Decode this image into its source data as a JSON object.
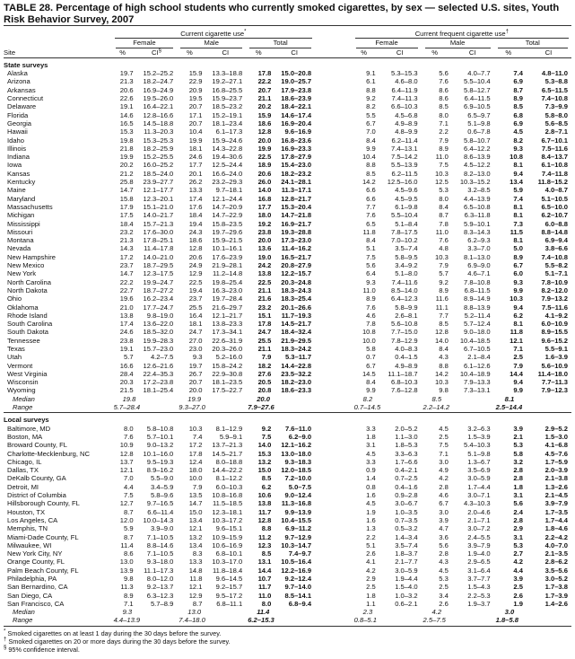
{
  "title": "TABLE 28. Percentage of high school students who currently smoked cigarettes, by sex — selected U.S. sites, Youth Risk Behavior Survey, 2007",
  "groups": {
    "current": "Current cigarette use",
    "current_mark": "*",
    "frequent": "Current frequent cigarette use",
    "frequent_mark": "†"
  },
  "sexes": [
    "Female",
    "Male",
    "Total"
  ],
  "columns": {
    "site": "Site",
    "pct": "%",
    "ci": "CI",
    "ci_mark": "§"
  },
  "state_label": "State surveys",
  "local_label": "Local surveys",
  "state_rows": [
    [
      "Alaska",
      "19.7",
      "15.2–25.2",
      "15.9",
      "13.3–18.8",
      "17.8",
      "15.0–20.8",
      "9.1",
      "5.3–15.3",
      "5.6",
      "4.0–7.7",
      "7.4",
      "4.8–11.0"
    ],
    [
      "Arizona",
      "21.3",
      "18.2–24.7",
      "22.9",
      "19.2–27.1",
      "22.2",
      "19.0–25.7",
      "6.1",
      "4.6–8.0",
      "7.6",
      "5.5–10.4",
      "6.9",
      "5.3–8.8"
    ],
    [
      "Arkansas",
      "20.6",
      "16.9–24.9",
      "20.9",
      "16.8–25.5",
      "20.7",
      "17.9–23.8",
      "8.8",
      "6.4–11.9",
      "8.6",
      "5.8–12.7",
      "8.7",
      "6.5–11.5"
    ],
    [
      "Connecticut",
      "22.6",
      "19.5–26.0",
      "19.5",
      "15.9–23.7",
      "21.1",
      "18.6–23.9",
      "9.2",
      "7.4–11.3",
      "8.6",
      "6.4–11.5",
      "8.9",
      "7.4–10.8"
    ],
    [
      "Delaware",
      "19.1",
      "16.4–22.1",
      "20.7",
      "18.5–23.2",
      "20.2",
      "18.4–22.1",
      "8.2",
      "6.6–10.3",
      "8.5",
      "6.9–10.5",
      "8.5",
      "7.3–9.9"
    ],
    [
      "Florida",
      "14.6",
      "12.8–16.6",
      "17.1",
      "15.2–19.1",
      "15.9",
      "14.6–17.4",
      "5.5",
      "4.5–6.8",
      "8.0",
      "6.5–9.7",
      "6.8",
      "5.8–8.0"
    ],
    [
      "Georgia",
      "16.5",
      "14.5–18.8",
      "20.7",
      "18.1–23.4",
      "18.6",
      "16.9–20.4",
      "6.7",
      "4.9–8.9",
      "7.1",
      "5.1–9.8",
      "6.9",
      "5.6–8.5"
    ],
    [
      "Hawaii",
      "15.3",
      "11.3–20.3",
      "10.4",
      "6.1–17.3",
      "12.8",
      "9.6–16.9",
      "7.0",
      "4.8–9.9",
      "2.2",
      "0.6–7.8",
      "4.5",
      "2.8–7.1"
    ],
    [
      "Idaho",
      "19.8",
      "15.3–25.3",
      "19.9",
      "15.9–24.6",
      "20.0",
      "16.8–23.6",
      "8.4",
      "6.2–11.4",
      "7.9",
      "5.8–10.7",
      "8.2",
      "6.7–10.1"
    ],
    [
      "Illinois",
      "21.8",
      "18.2–25.9",
      "18.1",
      "14.3–22.8",
      "19.9",
      "16.9–23.3",
      "9.9",
      "7.4–13.1",
      "8.9",
      "6.4–12.2",
      "9.3",
      "7.5–11.6"
    ],
    [
      "Indiana",
      "19.9",
      "15.2–25.5",
      "24.6",
      "19.4–30.6",
      "22.5",
      "17.8–27.9",
      "10.4",
      "7.5–14.2",
      "11.0",
      "8.6–13.9",
      "10.8",
      "8.4–13.7"
    ],
    [
      "Iowa",
      "20.2",
      "16.0–25.2",
      "17.7",
      "12.5–24.4",
      "18.9",
      "15.4–23.0",
      "8.8",
      "5.5–13.9",
      "7.5",
      "4.5–12.2",
      "8.1",
      "6.1–10.8"
    ],
    [
      "Kansas",
      "21.2",
      "18.5–24.0",
      "20.1",
      "16.6–24.0",
      "20.6",
      "18.2–23.2",
      "8.5",
      "6.2–11.5",
      "10.3",
      "8.2–13.0",
      "9.4",
      "7.4–11.8"
    ],
    [
      "Kentucky",
      "25.8",
      "23.9–27.7",
      "26.2",
      "23.2–29.3",
      "26.0",
      "24.1–28.1",
      "14.2",
      "12.5–16.0",
      "12.5",
      "10.3–15.2",
      "13.4",
      "11.8–15.2"
    ],
    [
      "Maine",
      "14.7",
      "12.1–17.7",
      "13.3",
      "9.7–18.1",
      "14.0",
      "11.3–17.1",
      "6.6",
      "4.5–9.6",
      "5.3",
      "3.2–8.5",
      "5.9",
      "4.0–8.7"
    ],
    [
      "Maryland",
      "15.8",
      "12.3–20.1",
      "17.4",
      "12.1–24.4",
      "16.8",
      "12.8–21.7",
      "6.6",
      "4.5–9.5",
      "8.0",
      "4.4–13.9",
      "7.4",
      "5.1–10.5"
    ],
    [
      "Massachusetts",
      "17.9",
      "15.1–21.0",
      "17.6",
      "14.7–20.9",
      "17.7",
      "15.3–20.4",
      "7.7",
      "6.1–9.8",
      "8.4",
      "6.5–10.8",
      "8.1",
      "6.5–10.0"
    ],
    [
      "Michigan",
      "17.5",
      "14.0–21.7",
      "18.4",
      "14.7–22.9",
      "18.0",
      "14.7–21.8",
      "7.6",
      "5.5–10.4",
      "8.7",
      "6.3–11.8",
      "8.1",
      "6.2–10.7"
    ],
    [
      "Mississippi",
      "18.4",
      "15.7–21.3",
      "19.4",
      "15.8–23.5",
      "19.2",
      "16.9–21.7",
      "6.5",
      "5.1–8.4",
      "7.8",
      "5.9–10.1",
      "7.3",
      "6.0–8.8"
    ],
    [
      "Missouri",
      "23.2",
      "17.6–30.0",
      "24.3",
      "19.7–29.6",
      "23.8",
      "19.3–28.8",
      "11.8",
      "7.8–17.5",
      "11.0",
      "8.3–14.3",
      "11.5",
      "8.8–14.8"
    ],
    [
      "Montana",
      "21.3",
      "17.8–25.1",
      "18.6",
      "15.9–21.5",
      "20.0",
      "17.3–23.0",
      "8.4",
      "7.0–10.2",
      "7.6",
      "6.2–9.3",
      "8.1",
      "6.9–9.4"
    ],
    [
      "Nevada",
      "14.3",
      "11.4–17.8",
      "12.8",
      "10.1–16.1",
      "13.6",
      "11.4–16.2",
      "5.1",
      "3.5–7.4",
      "4.8",
      "3.3–7.0",
      "5.0",
      "3.8–6.6"
    ],
    [
      "New Hampshire",
      "17.2",
      "14.0–21.0",
      "20.6",
      "17.6–23.9",
      "19.0",
      "16.5–21.7",
      "7.5",
      "5.8–9.5",
      "10.3",
      "8.1–13.0",
      "8.9",
      "7.4–10.8"
    ],
    [
      "New Mexico",
      "23.7",
      "18.7–29.5",
      "24.9",
      "21.9–28.1",
      "24.2",
      "20.8–27.9",
      "5.6",
      "3.4–9.2",
      "7.9",
      "6.9–9.0",
      "6.7",
      "5.5–8.2"
    ],
    [
      "New York",
      "14.7",
      "12.3–17.5",
      "12.9",
      "11.2–14.8",
      "13.8",
      "12.2–15.7",
      "6.4",
      "5.1–8.0",
      "5.7",
      "4.6–7.1",
      "6.0",
      "5.1–7.1"
    ],
    [
      "North Carolina",
      "22.2",
      "19.9–24.7",
      "22.5",
      "19.8–25.4",
      "22.5",
      "20.3–24.8",
      "9.3",
      "7.4–11.6",
      "9.2",
      "7.8–10.8",
      "9.3",
      "7.8–10.9"
    ],
    [
      "North Dakota",
      "22.7",
      "18.7–27.2",
      "19.4",
      "16.3–23.0",
      "21.1",
      "18.3–24.3",
      "11.0",
      "8.5–14.0",
      "8.9",
      "6.8–11.5",
      "9.9",
      "8.2–12.0"
    ],
    [
      "Ohio",
      "19.6",
      "16.2–23.4",
      "23.7",
      "19.7–28.4",
      "21.6",
      "18.3–25.4",
      "8.9",
      "6.4–12.3",
      "11.6",
      "8.9–14.9",
      "10.3",
      "7.9–13.2"
    ],
    [
      "Oklahoma",
      "21.0",
      "17.7–24.7",
      "25.5",
      "21.6–29.7",
      "23.2",
      "20.1–26.6",
      "7.6",
      "5.8–9.9",
      "11.1",
      "8.8–13.9",
      "9.4",
      "7.5–11.6"
    ],
    [
      "Rhode Island",
      "13.8",
      "9.8–19.0",
      "16.4",
      "12.1–21.7",
      "15.1",
      "11.7–19.3",
      "4.6",
      "2.6–8.1",
      "7.7",
      "5.2–11.4",
      "6.2",
      "4.1–9.2"
    ],
    [
      "South Carolina",
      "17.4",
      "13.6–22.0",
      "18.1",
      "13.8–23.3",
      "17.8",
      "14.5–21.7",
      "7.8",
      "5.6–10.8",
      "8.5",
      "5.7–12.4",
      "8.1",
      "6.0–10.9"
    ],
    [
      "South Dakota",
      "24.6",
      "18.5–32.0",
      "24.7",
      "17.3–34.1",
      "24.7",
      "18.4–32.4",
      "10.8",
      "7.7–15.0",
      "12.8",
      "9.0–18.0",
      "11.8",
      "8.9–15.5"
    ],
    [
      "Tennessee",
      "23.8",
      "19.9–28.3",
      "27.0",
      "22.6–31.9",
      "25.5",
      "21.9–29.5",
      "10.0",
      "7.8–12.9",
      "14.0",
      "10.4–18.5",
      "12.1",
      "9.6–15.2"
    ],
    [
      "Texas",
      "19.1",
      "15.7–23.0",
      "23.0",
      "20.3–26.0",
      "21.1",
      "18.3–24.2",
      "5.8",
      "4.0–8.3",
      "8.4",
      "6.7–10.5",
      "7.1",
      "5.5–9.1"
    ],
    [
      "Utah",
      "5.7",
      "4.2–7.5",
      "9.3",
      "5.2–16.0",
      "7.9",
      "5.3–11.7",
      "0.7",
      "0.4–1.5",
      "4.3",
      "2.1–8.4",
      "2.5",
      "1.6–3.9"
    ],
    [
      "Vermont",
      "16.6",
      "12.6–21.6",
      "19.7",
      "15.8–24.2",
      "18.2",
      "14.4–22.8",
      "6.7",
      "4.9–8.9",
      "8.8",
      "6.1–12.6",
      "7.9",
      "5.6–10.9"
    ],
    [
      "West Virginia",
      "28.4",
      "22.4–35.3",
      "26.7",
      "22.9–30.8",
      "27.6",
      "23.5–32.2",
      "14.5",
      "11.1–18.7",
      "14.2",
      "10.4–18.9",
      "14.4",
      "11.4–18.0"
    ],
    [
      "Wisconsin",
      "20.3",
      "17.2–23.8",
      "20.7",
      "18.1–23.5",
      "20.5",
      "18.2–23.0",
      "8.4",
      "6.8–10.3",
      "10.3",
      "7.9–13.3",
      "9.4",
      "7.7–11.3"
    ],
    [
      "Wyoming",
      "21.5",
      "18.1–25.4",
      "20.0",
      "17.5–22.7",
      "20.8",
      "18.6–23.3",
      "9.9",
      "7.6–12.8",
      "9.8",
      "7.3–13.1",
      "9.9",
      "7.9–12.3"
    ]
  ],
  "state_median": [
    "Median",
    "19.8",
    "19.9",
    "20.0",
    "8.2",
    "8.5",
    "8.1"
  ],
  "state_range": [
    "Range",
    "5.7–28.4",
    "9.3–27.0",
    "7.9–27.6",
    "0.7–14.5",
    "2.2–14.2",
    "2.5–14.4"
  ],
  "local_rows": [
    [
      "Baltimore, MD",
      "8.0",
      "5.8–10.8",
      "10.3",
      "8.1–12.9",
      "9.2",
      "7.6–11.0",
      "3.3",
      "2.0–5.2",
      "4.5",
      "3.2–6.3",
      "3.9",
      "2.9–5.2"
    ],
    [
      "Boston, MA",
      "7.6",
      "5.7–10.1",
      "7.4",
      "5.9–9.1",
      "7.5",
      "6.2–9.0",
      "1.8",
      "1.1–3.0",
      "2.5",
      "1.5–3.9",
      "2.1",
      "1.5–3.0"
    ],
    [
      "Broward County, FL",
      "10.9",
      "9.0–13.2",
      "17.2",
      "13.7–21.3",
      "14.0",
      "12.1–16.2",
      "3.1",
      "1.8–5.3",
      "7.5",
      "5.4–10.3",
      "5.3",
      "4.1–6.8"
    ],
    [
      "Charlotte-Mecklenburg, NC",
      "12.8",
      "10.1–16.0",
      "17.8",
      "14.5–21.7",
      "15.3",
      "13.0–18.0",
      "4.5",
      "3.3–6.3",
      "7.1",
      "5.1–9.8",
      "5.8",
      "4.5–7.6"
    ],
    [
      "Chicago, IL",
      "13.7",
      "9.5–19.3",
      "12.4",
      "8.0–18.8",
      "13.2",
      "9.3–18.3",
      "3.3",
      "1.7–6.6",
      "3.0",
      "1.3–6.7",
      "3.2",
      "1.7–5.9"
    ],
    [
      "Dallas, TX",
      "12.1",
      "8.9–16.2",
      "18.0",
      "14.4–22.2",
      "15.0",
      "12.0–18.5",
      "0.9",
      "0.4–2.1",
      "4.9",
      "3.5–6.9",
      "2.8",
      "2.0–3.9"
    ],
    [
      "DeKalb County, GA",
      "7.0",
      "5.5–9.0",
      "10.0",
      "8.1–12.2",
      "8.5",
      "7.2–10.0",
      "1.4",
      "0.7–2.5",
      "4.2",
      "3.0–5.9",
      "2.8",
      "2.1–3.8"
    ],
    [
      "Detroit, MI",
      "4.4",
      "3.4–5.9",
      "7.9",
      "6.0–10.3",
      "6.2",
      "5.0–7.5",
      "0.8",
      "0.4–1.6",
      "2.8",
      "1.7–4.4",
      "1.8",
      "1.3–2.6"
    ],
    [
      "District of Columbia",
      "7.5",
      "5.8–9.6",
      "13.5",
      "10.8–16.8",
      "10.6",
      "9.0–12.4",
      "1.6",
      "0.9–2.8",
      "4.6",
      "3.0–7.1",
      "3.1",
      "2.1–4.5"
    ],
    [
      "Hillsborough County, FL",
      "12.7",
      "9.7–16.5",
      "14.7",
      "11.5–18.5",
      "13.8",
      "11.3–16.8",
      "4.5",
      "3.0–6.7",
      "6.7",
      "4.3–10.3",
      "5.6",
      "3.9–7.9"
    ],
    [
      "Houston, TX",
      "8.7",
      "6.6–11.4",
      "15.0",
      "12.3–18.1",
      "11.7",
      "9.9–13.9",
      "1.9",
      "1.0–3.5",
      "3.0",
      "2.0–4.6",
      "2.4",
      "1.7–3.5"
    ],
    [
      "Los Angeles, CA",
      "12.0",
      "10.0–14.3",
      "13.4",
      "10.3–17.2",
      "12.8",
      "10.4–15.5",
      "1.6",
      "0.7–3.5",
      "3.9",
      "2.1–7.1",
      "2.8",
      "1.7–4.4"
    ],
    [
      "Memphis, TN",
      "5.9",
      "3.9–9.0",
      "12.1",
      "9.6–15.1",
      "8.8",
      "6.9–11.2",
      "1.3",
      "0.5–3.2",
      "4.7",
      "3.0–7.2",
      "2.9",
      "1.8–4.6"
    ],
    [
      "Miami-Dade County, FL",
      "8.7",
      "7.1–10.5",
      "13.2",
      "10.9–15.9",
      "11.2",
      "9.7–12.9",
      "2.2",
      "1.4–3.4",
      "3.6",
      "2.4–5.5",
      "3.1",
      "2.2–4.2"
    ],
    [
      "Milwaukee, WI",
      "11.4",
      "8.8–14.6",
      "13.4",
      "10.6–16.9",
      "12.3",
      "10.3–14.7",
      "5.1",
      "3.5–7.4",
      "5.6",
      "3.9–7.9",
      "5.3",
      "4.0–7.0"
    ],
    [
      "New York City, NY",
      "8.6",
      "7.1–10.5",
      "8.3",
      "6.8–10.1",
      "8.5",
      "7.4–9.7",
      "2.6",
      "1.8–3.7",
      "2.8",
      "1.9–4.0",
      "2.7",
      "2.1–3.5"
    ],
    [
      "Orange County, FL",
      "13.0",
      "9.3–18.0",
      "13.3",
      "10.3–17.0",
      "13.1",
      "10.5–16.4",
      "4.1",
      "2.1–7.7",
      "4.3",
      "2.9–6.5",
      "4.2",
      "2.8–6.2"
    ],
    [
      "Palm Beach County, FL",
      "13.9",
      "11.1–17.3",
      "14.8",
      "11.8–18.4",
      "14.4",
      "12.2–16.9",
      "4.2",
      "3.0–5.9",
      "4.5",
      "3.1–6.4",
      "4.4",
      "3.5–5.6"
    ],
    [
      "Philadelphia, PA",
      "9.8",
      "8.0–12.0",
      "11.8",
      "9.6–14.5",
      "10.7",
      "9.2–12.4",
      "2.9",
      "1.9–4.4",
      "5.3",
      "3.7–7.7",
      "3.9",
      "3.0–5.2"
    ],
    [
      "San Bernardino, CA",
      "11.3",
      "9.2–13.7",
      "12.1",
      "9.2–15.7",
      "11.7",
      "9.7–14.0",
      "2.5",
      "1.5–4.0",
      "2.5",
      "1.5–4.3",
      "2.5",
      "1.7–3.8"
    ],
    [
      "San Diego, CA",
      "8.9",
      "6.3–12.3",
      "12.9",
      "9.5–17.2",
      "11.0",
      "8.5–14.1",
      "1.8",
      "1.0–3.2",
      "3.4",
      "2.2–5.3",
      "2.6",
      "1.7–3.9"
    ],
    [
      "San Francisco, CA",
      "7.1",
      "5.7–8.9",
      "8.7",
      "6.8–11.1",
      "8.0",
      "6.8–9.4",
      "1.1",
      "0.6–2.1",
      "2.6",
      "1.9–3.7",
      "1.9",
      "1.4–2.6"
    ]
  ],
  "local_median": [
    "Median",
    "9.3",
    "13.0",
    "11.4",
    "2.3",
    "4.2",
    "3.0"
  ],
  "local_range": [
    "Range",
    "4.4–13.9",
    "7.4–18.0",
    "6.2–15.3",
    "0.8–5.1",
    "2.5–7.5",
    "1.8–5.8"
  ],
  "footnotes": [
    {
      "mark": "*",
      "text": "Smoked cigarettes on at least 1 day during the 30 days before the survey."
    },
    {
      "mark": "†",
      "text": "Smoked cigarettes on 20 or more days during the 30 days before the survey."
    },
    {
      "mark": "§",
      "text": "95% confidence interval."
    }
  ]
}
